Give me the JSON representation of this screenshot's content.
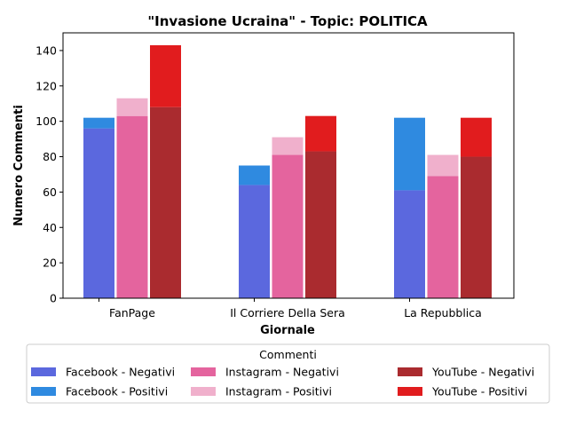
{
  "chart_data": {
    "type": "bar",
    "stacked": true,
    "title": "\"Invasione Ucraina\" - Topic: POLITICA",
    "xlabel": "Giornale",
    "ylabel": "Numero Commenti",
    "ylim": [
      0,
      150
    ],
    "yticks": [
      0,
      20,
      40,
      60,
      80,
      100,
      120,
      140
    ],
    "categories": [
      "FanPage",
      "Il Corriere Della Sera",
      "La Repubblica"
    ],
    "groups": [
      {
        "platform": "Facebook",
        "series": [
          {
            "name": "Facebook - Negativi",
            "color": "#5b68de",
            "values": [
              96,
              64,
              61
            ]
          },
          {
            "name": "Facebook - Positivi",
            "color": "#2f8ae0",
            "values": [
              6,
              11,
              41
            ]
          }
        ]
      },
      {
        "platform": "Instagram",
        "series": [
          {
            "name": "Instagram - Negativi",
            "color": "#e4649e",
            "values": [
              103,
              81,
              69
            ]
          },
          {
            "name": "Instagram - Positivi",
            "color": "#f0b0cc",
            "values": [
              10,
              10,
              12
            ]
          }
        ]
      },
      {
        "platform": "YouTube",
        "series": [
          {
            "name": "YouTube - Negativi",
            "color": "#aa2b2f",
            "values": [
              108,
              83,
              80
            ]
          },
          {
            "name": "YouTube - Positivi",
            "color": "#e11c1e",
            "values": [
              35,
              20,
              22
            ]
          }
        ]
      }
    ],
    "legend": {
      "title": "Commenti",
      "placement": "bottom",
      "columns": 3
    },
    "grid": false
  }
}
